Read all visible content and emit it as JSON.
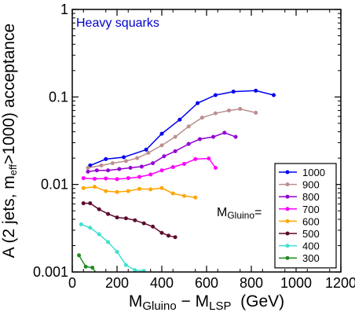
{
  "chart_data": {
    "type": "line",
    "title": "",
    "annotation": "Heavy squarks",
    "xlabel": {
      "main": "M",
      "sub1": "Gluino",
      "mid": " − M",
      "sub2": "LSP",
      "tail": "  (GeV)"
    },
    "ylabel": {
      "pre": "A (2 jets, m",
      "sub": "eff",
      "post": ">1000) acceptance"
    },
    "xlim": [
      0,
      1200
    ],
    "ylim": [
      0.001,
      1
    ],
    "yscale": "log",
    "xticks": [
      0,
      200,
      400,
      600,
      800,
      1000,
      1200
    ],
    "xtick_labels": [
      "0",
      "200",
      "400",
      "600",
      "800",
      "1000",
      "1200"
    ],
    "yticks": [
      0.001,
      0.01,
      0.1,
      1
    ],
    "ytick_labels": [
      "0.001",
      "0.01",
      "0.1",
      "1"
    ],
    "legend_position": "bottom-right",
    "legend_title": {
      "main": "M",
      "sub": "Gluino",
      "tail": "="
    },
    "series": [
      {
        "name": "1000",
        "color": "#0000ee",
        "x": [
          80,
          150,
          230,
          330,
          400,
          480,
          560,
          640,
          720,
          820,
          900
        ],
        "y": [
          0.0165,
          0.0195,
          0.0205,
          0.025,
          0.038,
          0.055,
          0.085,
          0.105,
          0.115,
          0.118,
          0.105
        ]
      },
      {
        "name": "900",
        "color": "#bc8f8f",
        "x": [
          70,
          130,
          180,
          240,
          290,
          340,
          400,
          460,
          520,
          580,
          640,
          700,
          750,
          820
        ],
        "y": [
          0.0155,
          0.0165,
          0.0175,
          0.0185,
          0.02,
          0.023,
          0.028,
          0.035,
          0.046,
          0.058,
          0.065,
          0.07,
          0.073,
          0.066
        ]
      },
      {
        "name": "800",
        "color": "#9400d3",
        "x": [
          70,
          110,
          160,
          210,
          260,
          310,
          360,
          410,
          460,
          520,
          570,
          630,
          680,
          730
        ],
        "y": [
          0.014,
          0.0145,
          0.0145,
          0.015,
          0.0155,
          0.016,
          0.0175,
          0.021,
          0.024,
          0.029,
          0.033,
          0.035,
          0.039,
          0.035
        ]
      },
      {
        "name": "700",
        "color": "#ff00ff",
        "x": [
          50,
          100,
          150,
          200,
          250,
          300,
          350,
          400,
          450,
          500,
          550,
          610,
          640
        ],
        "y": [
          0.0118,
          0.0116,
          0.0117,
          0.0115,
          0.0118,
          0.0122,
          0.013,
          0.0145,
          0.0158,
          0.0172,
          0.0195,
          0.0198,
          0.0155
        ]
      },
      {
        "name": "600",
        "color": "#ffa500",
        "x": [
          50,
          100,
          150,
          200,
          250,
          300,
          350,
          400,
          450,
          500,
          550
        ],
        "y": [
          0.0091,
          0.0094,
          0.0084,
          0.0082,
          0.0084,
          0.0089,
          0.0088,
          0.0091,
          0.0079,
          0.0074,
          0.0071
        ]
      },
      {
        "name": "500",
        "color": "#5c0a2e",
        "x": [
          50,
          80,
          120,
          160,
          200,
          240,
          280,
          320,
          360,
          400,
          430,
          460
        ],
        "y": [
          0.0061,
          0.0061,
          0.0052,
          0.0046,
          0.0042,
          0.0041,
          0.0039,
          0.0036,
          0.0033,
          0.0028,
          0.0026,
          0.0025
        ]
      },
      {
        "name": "400",
        "color": "#40e0d0",
        "x": [
          40,
          80,
          120,
          160,
          200,
          240,
          280,
          320
        ],
        "y": [
          0.0035,
          0.0032,
          0.0027,
          0.0022,
          0.0017,
          0.0012,
          0.00105,
          0.00103
        ]
      },
      {
        "name": "300",
        "color": "#228b22",
        "x": [
          30,
          60,
          90,
          110
        ],
        "y": [
          0.00155,
          0.00115,
          0.00112,
          0.00095
        ]
      }
    ]
  }
}
